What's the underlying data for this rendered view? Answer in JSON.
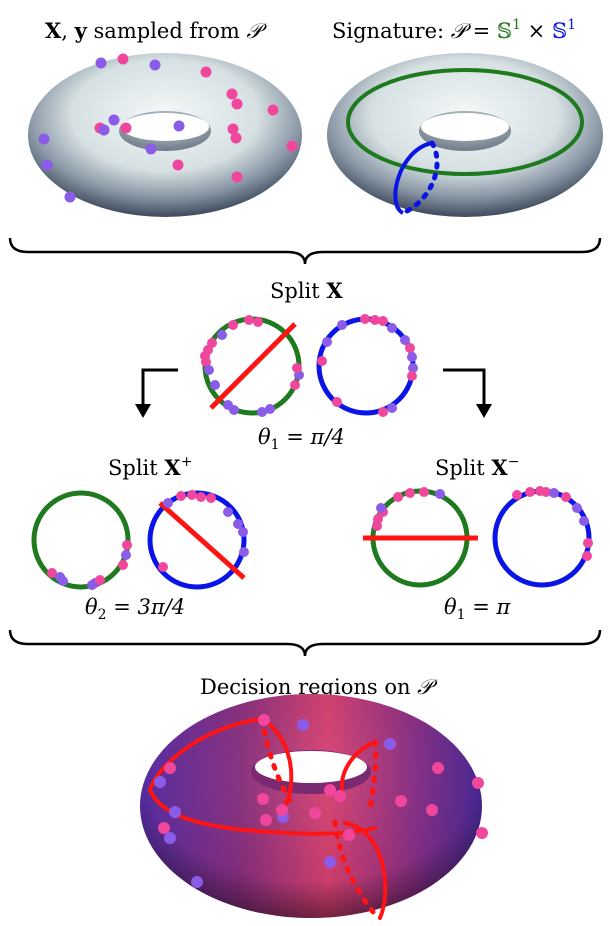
{
  "top": {
    "left_title": {
      "x": "X",
      "sep": ", ",
      "y": "y",
      "mid": " sampled from ",
      "P": "𝒫"
    },
    "right_title": {
      "prefix": "Signature: ",
      "P": "𝒫",
      "eq": " = ",
      "s1a": "𝕊",
      "exp1": "1",
      "times": " × ",
      "s1b": "𝕊",
      "exp2": "1"
    }
  },
  "middle": {
    "split_title": {
      "word": "Split ",
      "X": "X"
    },
    "theta_center": {
      "theta": "θ",
      "sub": "1",
      "rhs": " = π/4"
    }
  },
  "left_split": {
    "title": {
      "word": "Split ",
      "X": "X",
      "sup": "+"
    },
    "theta": {
      "theta": "θ",
      "sub": "2",
      "rhs": " = 3π/4"
    }
  },
  "right_split": {
    "title": {
      "word": "Split ",
      "X": "X",
      "sup": "−"
    },
    "theta": {
      "theta": "θ",
      "sub": "1",
      "rhs": " = π"
    }
  },
  "bottom": {
    "title": {
      "text": "Decision regions on ",
      "P": "𝒫"
    }
  },
  "colors": {
    "green": "#1f7a1f",
    "blue": "#0a14e6",
    "red": "#ff1414",
    "pink": "#f0479d",
    "purple": "#8a5ce8",
    "torus_light": "#f2f6f6",
    "torus_dark": "#3e4a5c"
  }
}
